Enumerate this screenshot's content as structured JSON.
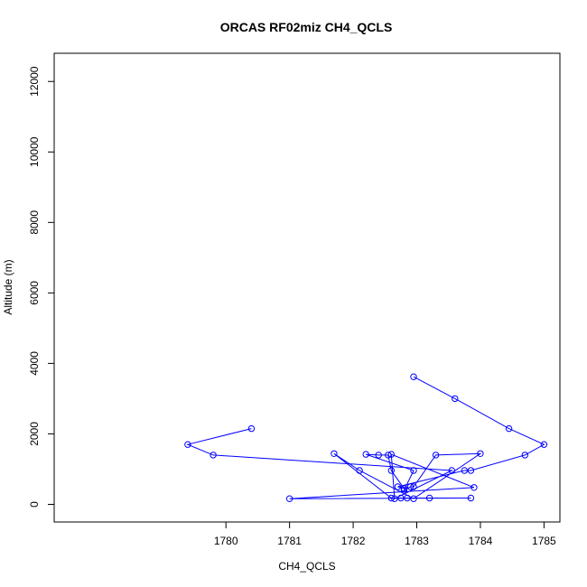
{
  "chart_data": {
    "type": "line",
    "title": "ORCAS RF02miz CH4_QCLS",
    "xlabel": "CH4_QCLS",
    "ylabel": "Altitude (m)",
    "xlim": [
      1777.3,
      1785.25
    ],
    "ylim": [
      -500,
      12800
    ],
    "xticks": [
      1780,
      1781,
      1782,
      1783,
      1784,
      1785
    ],
    "yticks": [
      0,
      2000,
      4000,
      6000,
      8000,
      10000,
      12000
    ],
    "grid": false,
    "color": "#0000ff",
    "series": [
      {
        "points": [
          [
            1782.95,
            3620
          ],
          [
            1783.6,
            3000
          ],
          [
            1784.45,
            2150
          ],
          [
            1785.0,
            1700
          ],
          [
            1784.7,
            1400
          ],
          [
            1783.85,
            960
          ],
          [
            1783.75,
            960
          ],
          [
            1782.7,
            500
          ],
          [
            1782.8,
            450
          ],
          [
            1782.6,
            960
          ],
          [
            1782.55,
            1400
          ],
          [
            1782.4,
            1400
          ],
          [
            1782.2,
            1420
          ],
          [
            1782.95,
            960
          ],
          [
            1782.8,
            400
          ],
          [
            1782.9,
            500
          ],
          [
            1782.95,
            500
          ],
          [
            1783.3,
            1400
          ],
          [
            1784.0,
            1440
          ],
          [
            1782.95,
            160
          ],
          [
            1782.1,
            960
          ],
          [
            1781.7,
            1440
          ],
          [
            1782.6,
            180
          ],
          [
            1782.75,
            180
          ],
          [
            1782.85,
            180
          ],
          [
            1783.2,
            180
          ],
          [
            1783.85,
            180
          ],
          [
            1781.0,
            160
          ],
          [
            1783.9,
            480
          ],
          [
            1782.6,
            1420
          ],
          [
            1782.65,
            160
          ],
          [
            1783.55,
            960
          ],
          [
            1779.8,
            1400
          ],
          [
            1779.4,
            1700
          ],
          [
            1780.4,
            2150
          ]
        ]
      }
    ]
  }
}
